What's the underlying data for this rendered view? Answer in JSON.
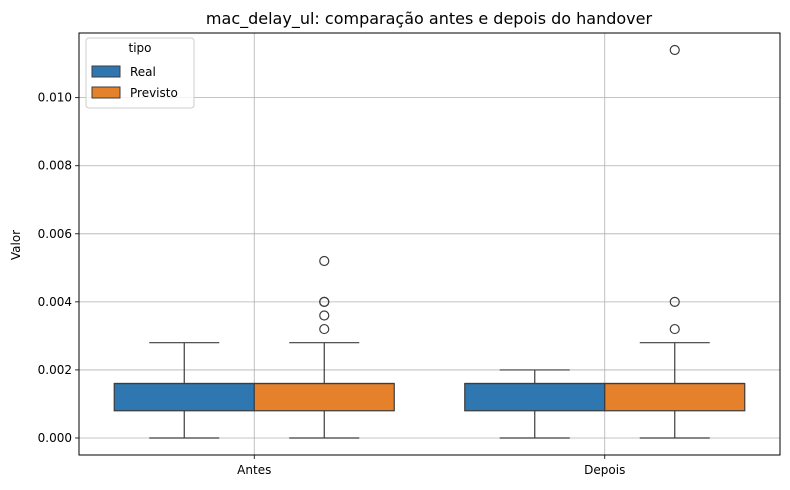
{
  "chart_data": {
    "type": "box",
    "title": "mac_delay_ul: comparação antes e depois do handover",
    "xlabel": "",
    "ylabel": "Valor",
    "categories": [
      "Antes",
      "Depois"
    ],
    "ylim": [
      -0.0005,
      0.0119
    ],
    "yticks": [
      0.0,
      0.002,
      0.004,
      0.006,
      0.008,
      0.01
    ],
    "ytick_labels": [
      "0.000",
      "0.002",
      "0.004",
      "0.006",
      "0.008",
      "0.010"
    ],
    "grid": true,
    "legend": {
      "title": "tipo",
      "position": "top-left"
    },
    "series": [
      {
        "name": "Real",
        "color": "#2e77b1",
        "boxes": [
          {
            "category": "Antes",
            "whisker_low": 0.0,
            "q1": 0.0008,
            "median": 0.0016,
            "q3": 0.0016,
            "whisker_high": 0.0028,
            "outliers": []
          },
          {
            "category": "Depois",
            "whisker_low": 0.0,
            "q1": 0.0008,
            "median": 0.0016,
            "q3": 0.0016,
            "whisker_high": 0.002,
            "outliers": []
          }
        ]
      },
      {
        "name": "Previsto",
        "color": "#e6812b",
        "boxes": [
          {
            "category": "Antes",
            "whisker_low": 0.0,
            "q1": 0.0008,
            "median": 0.0016,
            "q3": 0.0016,
            "whisker_high": 0.0028,
            "outliers": [
              0.0032,
              0.0036,
              0.004,
              0.004,
              0.0052
            ]
          },
          {
            "category": "Depois",
            "whisker_low": 0.0,
            "q1": 0.0008,
            "median": 0.0016,
            "q3": 0.0016,
            "whisker_high": 0.0028,
            "outliers": [
              0.0032,
              0.004,
              0.0114
            ]
          }
        ]
      }
    ]
  }
}
